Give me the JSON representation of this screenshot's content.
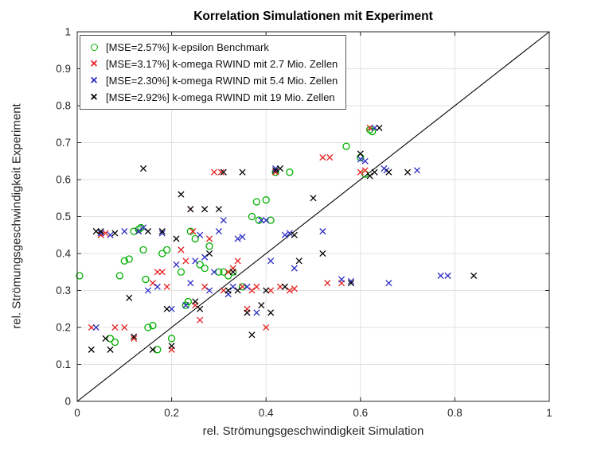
{
  "window": {
    "background": "#FFFFFF"
  },
  "chart_data": {
    "type": "scatter",
    "title": "Korrelation Simulationen mit Experiment",
    "xlabel": "rel. Strömungsgeschwindigkeit Simulation",
    "ylabel": "rel. Strömungsgeschwindigkeit Experiment",
    "xlim": [
      0,
      1
    ],
    "ylim": [
      0,
      1
    ],
    "x_ticks": [
      0,
      0.2,
      0.4,
      0.6,
      0.8,
      1
    ],
    "x_tick_labels": [
      "0",
      "0.2",
      "0.4",
      "0.6",
      "0.8",
      "1"
    ],
    "y_ticks": [
      0,
      0.1,
      0.2,
      0.3,
      0.4,
      0.5,
      0.6,
      0.7,
      0.8,
      0.9,
      1
    ],
    "y_tick_labels": [
      "0",
      "0.1",
      "0.2",
      "0.3",
      "0.4",
      "0.5",
      "0.6",
      "0.7",
      "0.8",
      "0.9",
      "1"
    ],
    "grid": true,
    "grid_color": "#E0E0E0",
    "axis_color": "#262626",
    "legend_position": "top-left",
    "reference_line": {
      "from": [
        0,
        0
      ],
      "to": [
        1,
        1
      ],
      "color": "#000000"
    },
    "series": [
      {
        "name": "k-epsilon Benchmark",
        "legend_label": "[MSE=2.57%] k-epsilon Benchmark",
        "marker": "o",
        "color": "#00B100",
        "points": [
          [
            0.005,
            0.34
          ],
          [
            0.07,
            0.17
          ],
          [
            0.08,
            0.16
          ],
          [
            0.09,
            0.34
          ],
          [
            0.1,
            0.38
          ],
          [
            0.11,
            0.385
          ],
          [
            0.12,
            0.46
          ],
          [
            0.13,
            0.465
          ],
          [
            0.135,
            0.47
          ],
          [
            0.14,
            0.41
          ],
          [
            0.145,
            0.33
          ],
          [
            0.15,
            0.2
          ],
          [
            0.16,
            0.205
          ],
          [
            0.17,
            0.14
          ],
          [
            0.18,
            0.4
          ],
          [
            0.19,
            0.41
          ],
          [
            0.2,
            0.17
          ],
          [
            0.22,
            0.35
          ],
          [
            0.23,
            0.26
          ],
          [
            0.235,
            0.27
          ],
          [
            0.24,
            0.46
          ],
          [
            0.25,
            0.44
          ],
          [
            0.26,
            0.37
          ],
          [
            0.27,
            0.36
          ],
          [
            0.28,
            0.42
          ],
          [
            0.3,
            0.35
          ],
          [
            0.31,
            0.35
          ],
          [
            0.32,
            0.34
          ],
          [
            0.33,
            0.35
          ],
          [
            0.35,
            0.31
          ],
          [
            0.37,
            0.5
          ],
          [
            0.38,
            0.54
          ],
          [
            0.385,
            0.49
          ],
          [
            0.4,
            0.545
          ],
          [
            0.41,
            0.49
          ],
          [
            0.42,
            0.62
          ],
          [
            0.45,
            0.62
          ],
          [
            0.57,
            0.69
          ],
          [
            0.6,
            0.66
          ],
          [
            0.61,
            0.615
          ],
          [
            0.62,
            0.735
          ],
          [
            0.625,
            0.73
          ]
        ]
      },
      {
        "name": "k-omega RWIND 2.7 Mio. Zellen",
        "legend_label": "[MSE=3.17%] k-omega RWIND mit 2.7 Mio. Zellen",
        "marker": "x",
        "color": "#E51D1D",
        "points": [
          [
            0.03,
            0.2
          ],
          [
            0.05,
            0.45
          ],
          [
            0.06,
            0.455
          ],
          [
            0.08,
            0.2
          ],
          [
            0.1,
            0.2
          ],
          [
            0.12,
            0.17
          ],
          [
            0.13,
            0.46
          ],
          [
            0.16,
            0.32
          ],
          [
            0.17,
            0.35
          ],
          [
            0.18,
            0.35
          ],
          [
            0.19,
            0.31
          ],
          [
            0.2,
            0.14
          ],
          [
            0.22,
            0.41
          ],
          [
            0.23,
            0.38
          ],
          [
            0.24,
            0.52
          ],
          [
            0.245,
            0.46
          ],
          [
            0.25,
            0.26
          ],
          [
            0.26,
            0.22
          ],
          [
            0.27,
            0.31
          ],
          [
            0.28,
            0.44
          ],
          [
            0.29,
            0.62
          ],
          [
            0.305,
            0.62
          ],
          [
            0.31,
            0.3
          ],
          [
            0.32,
            0.35
          ],
          [
            0.33,
            0.36
          ],
          [
            0.34,
            0.38
          ],
          [
            0.35,
            0.31
          ],
          [
            0.36,
            0.25
          ],
          [
            0.37,
            0.3
          ],
          [
            0.38,
            0.31
          ],
          [
            0.4,
            0.2
          ],
          [
            0.41,
            0.3
          ],
          [
            0.42,
            0.62
          ],
          [
            0.43,
            0.31
          ],
          [
            0.45,
            0.3
          ],
          [
            0.46,
            0.305
          ],
          [
            0.52,
            0.66
          ],
          [
            0.535,
            0.66
          ],
          [
            0.53,
            0.32
          ],
          [
            0.56,
            0.32
          ],
          [
            0.6,
            0.62
          ],
          [
            0.61,
            0.625
          ],
          [
            0.62,
            0.74
          ]
        ]
      },
      {
        "name": "k-omega RWIND 5.4 Mio. Zellen",
        "legend_label": "[MSE=2.30%] k-omega RWIND mit 5.4 Mio. Zellen",
        "marker": "x",
        "color": "#2B2BC4",
        "points": [
          [
            0.04,
            0.2
          ],
          [
            0.05,
            0.455
          ],
          [
            0.07,
            0.45
          ],
          [
            0.1,
            0.46
          ],
          [
            0.13,
            0.46
          ],
          [
            0.14,
            0.47
          ],
          [
            0.15,
            0.3
          ],
          [
            0.17,
            0.31
          ],
          [
            0.18,
            0.455
          ],
          [
            0.2,
            0.25
          ],
          [
            0.21,
            0.37
          ],
          [
            0.23,
            0.26
          ],
          [
            0.24,
            0.32
          ],
          [
            0.25,
            0.38
          ],
          [
            0.26,
            0.45
          ],
          [
            0.27,
            0.39
          ],
          [
            0.28,
            0.3
          ],
          [
            0.29,
            0.35
          ],
          [
            0.3,
            0.46
          ],
          [
            0.31,
            0.49
          ],
          [
            0.32,
            0.29
          ],
          [
            0.33,
            0.31
          ],
          [
            0.34,
            0.44
          ],
          [
            0.35,
            0.445
          ],
          [
            0.36,
            0.31
          ],
          [
            0.38,
            0.24
          ],
          [
            0.39,
            0.49
          ],
          [
            0.4,
            0.49
          ],
          [
            0.41,
            0.38
          ],
          [
            0.42,
            0.63
          ],
          [
            0.44,
            0.45
          ],
          [
            0.45,
            0.455
          ],
          [
            0.46,
            0.36
          ],
          [
            0.52,
            0.46
          ],
          [
            0.56,
            0.33
          ],
          [
            0.58,
            0.325
          ],
          [
            0.6,
            0.655
          ],
          [
            0.61,
            0.65
          ],
          [
            0.63,
            0.74
          ],
          [
            0.65,
            0.63
          ],
          [
            0.655,
            0.625
          ],
          [
            0.66,
            0.32
          ],
          [
            0.72,
            0.625
          ],
          [
            0.77,
            0.34
          ],
          [
            0.785,
            0.34
          ]
        ]
      },
      {
        "name": "k-omega RWIND 19 Mio. Zellen",
        "legend_label": "[MSE=2.92%] k-omega RWIND mit 19 Mio. Zellen",
        "marker": "x",
        "color": "#000000",
        "points": [
          [
            0.03,
            0.14
          ],
          [
            0.04,
            0.46
          ],
          [
            0.05,
            0.46
          ],
          [
            0.06,
            0.17
          ],
          [
            0.07,
            0.14
          ],
          [
            0.08,
            0.455
          ],
          [
            0.11,
            0.28
          ],
          [
            0.12,
            0.175
          ],
          [
            0.14,
            0.63
          ],
          [
            0.15,
            0.46
          ],
          [
            0.16,
            0.14
          ],
          [
            0.18,
            0.46
          ],
          [
            0.19,
            0.25
          ],
          [
            0.2,
            0.15
          ],
          [
            0.21,
            0.44
          ],
          [
            0.22,
            0.56
          ],
          [
            0.24,
            0.52
          ],
          [
            0.25,
            0.27
          ],
          [
            0.26,
            0.25
          ],
          [
            0.27,
            0.52
          ],
          [
            0.28,
            0.4
          ],
          [
            0.3,
            0.52
          ],
          [
            0.31,
            0.62
          ],
          [
            0.32,
            0.3
          ],
          [
            0.33,
            0.35
          ],
          [
            0.34,
            0.3
          ],
          [
            0.35,
            0.62
          ],
          [
            0.36,
            0.24
          ],
          [
            0.37,
            0.18
          ],
          [
            0.39,
            0.26
          ],
          [
            0.4,
            0.3
          ],
          [
            0.41,
            0.24
          ],
          [
            0.42,
            0.625
          ],
          [
            0.43,
            0.63
          ],
          [
            0.44,
            0.31
          ],
          [
            0.46,
            0.45
          ],
          [
            0.47,
            0.38
          ],
          [
            0.5,
            0.55
          ],
          [
            0.52,
            0.4
          ],
          [
            0.58,
            0.32
          ],
          [
            0.6,
            0.67
          ],
          [
            0.62,
            0.61
          ],
          [
            0.63,
            0.62
          ],
          [
            0.64,
            0.74
          ],
          [
            0.66,
            0.62
          ],
          [
            0.7,
            0.62
          ],
          [
            0.84,
            0.34
          ]
        ]
      }
    ]
  }
}
